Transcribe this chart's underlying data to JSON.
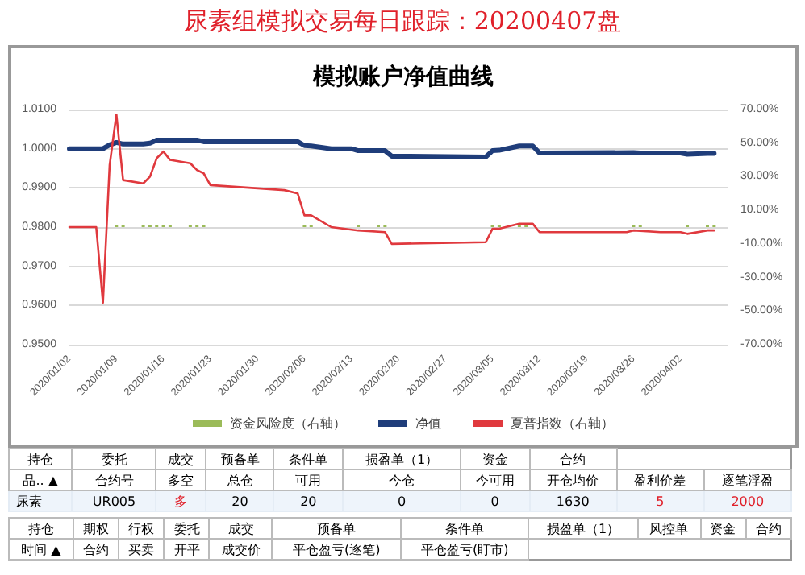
{
  "chart_data": [
    {
      "type": "line",
      "title": "尿素组模拟交易每日跟踪：20200407盘",
      "subtitle": "模拟账户净值曲线",
      "xlim": [
        "2020-01-02",
        "2020-04-09"
      ],
      "xticks": [
        {
          "value": "2020-01-02",
          "label": "2020/01/02"
        },
        {
          "value": "2020-01-09",
          "label": "2020/01/09"
        },
        {
          "value": "2020-01-16",
          "label": "2020/01/16"
        },
        {
          "value": "2020-01-23",
          "label": "2020/01/23"
        },
        {
          "value": "2020-01-30",
          "label": "2020/01/30"
        },
        {
          "value": "2020-02-06",
          "label": "2020/02/06"
        },
        {
          "value": "2020-02-13",
          "label": "2020/02/13"
        },
        {
          "value": "2020-02-20",
          "label": "2020/02/20"
        },
        {
          "value": "2020-02-27",
          "label": "2020/02/27"
        },
        {
          "value": "2020-03-05",
          "label": "2020/03/05"
        },
        {
          "value": "2020-03-12",
          "label": "2020/03/12"
        },
        {
          "value": "2020-03-19",
          "label": "2020/03/19"
        },
        {
          "value": "2020-03-26",
          "label": "2020/03/26"
        },
        {
          "value": "2020-04-02",
          "label": "2020/04/02"
        }
      ],
      "ylim": [
        0.95,
        1.01
      ],
      "yticks": [
        {
          "value": 0.95,
          "label": "0.9500"
        },
        {
          "value": 0.96,
          "label": "0.9600"
        },
        {
          "value": 0.97,
          "label": "0.9700"
        },
        {
          "value": 0.98,
          "label": "0.9800"
        },
        {
          "value": 0.99,
          "label": "0.9900"
        },
        {
          "value": 1.0,
          "label": "1.0000"
        },
        {
          "value": 1.01,
          "label": "1.0100"
        }
      ],
      "y2lim": [
        -70,
        70
      ],
      "y2ticks": [
        {
          "value": -70,
          "label": "-70.00%"
        },
        {
          "value": -50,
          "label": "-50.00%"
        },
        {
          "value": -30,
          "label": "-30.00%"
        },
        {
          "value": -10,
          "label": "-10.00%"
        },
        {
          "value": 10,
          "label": "10.00%"
        },
        {
          "value": 30,
          "label": "30.00%"
        },
        {
          "value": 50,
          "label": "50.00%"
        },
        {
          "value": 70,
          "label": "70.00%"
        }
      ],
      "grid": "y",
      "legend": "bottom",
      "marker": "none",
      "series": [
        {
          "name": "资金风险度（右轴）",
          "type": "bar",
          "axis": "y2",
          "color": "#9bbb59",
          "x": [
            "2020-01-09",
            "2020-01-10",
            "2020-01-13",
            "2020-01-14",
            "2020-01-15",
            "2020-01-16",
            "2020-01-17",
            "2020-01-20",
            "2020-01-21",
            "2020-01-22",
            "2020-02-06",
            "2020-02-07",
            "2020-02-14",
            "2020-02-17",
            "2020-02-18",
            "2020-03-05",
            "2020-03-06",
            "2020-03-09",
            "2020-03-10",
            "2020-03-26",
            "2020-03-27",
            "2020-04-03",
            "2020-04-06",
            "2020-04-07"
          ],
          "values": [
            1,
            1,
            1,
            1,
            1,
            1,
            1,
            1,
            1,
            1,
            1,
            1,
            1,
            1,
            1,
            1,
            1,
            1,
            1,
            1,
            1,
            1,
            1,
            1
          ]
        },
        {
          "name": "净值",
          "color": "#1f3d7a",
          "line_style": "solid",
          "x": [
            "2020-01-02",
            "2020-01-06",
            "2020-01-07",
            "2020-01-08",
            "2020-01-09",
            "2020-01-10",
            "2020-01-13",
            "2020-01-14",
            "2020-01-15",
            "2020-01-21",
            "2020-01-22",
            "2020-02-05",
            "2020-02-06",
            "2020-02-07",
            "2020-02-10",
            "2020-02-13",
            "2020-02-14",
            "2020-02-18",
            "2020-02-19",
            "2020-03-04",
            "2020-03-05",
            "2020-03-06",
            "2020-03-09",
            "2020-03-11",
            "2020-03-12",
            "2020-03-26",
            "2020-03-27",
            "2020-04-02",
            "2020-04-03",
            "2020-04-06",
            "2020-04-07"
          ],
          "values": [
            1.0,
            1.0,
            1.0,
            1.001,
            1.0016,
            1.0012,
            1.0012,
            1.0014,
            1.0022,
            1.0022,
            1.0018,
            1.0018,
            1.0008,
            1.0007,
            1.0,
            1.0,
            0.9995,
            0.9995,
            0.9981,
            0.9979,
            0.9995,
            0.9996,
            1.0007,
            1.0007,
            0.9989,
            0.999,
            0.9989,
            0.9989,
            0.9986,
            0.9988,
            0.9988
          ]
        },
        {
          "name": "夏普指数（右轴）",
          "color": "#e0393e",
          "axis": "y2",
          "line_style": "solid",
          "x": [
            "2020-01-02",
            "2020-01-06",
            "2020-01-07",
            "2020-01-08",
            "2020-01-09",
            "2020-01-10",
            "2020-01-13",
            "2020-01-14",
            "2020-01-15",
            "2020-01-16",
            "2020-01-17",
            "2020-01-20",
            "2020-01-21",
            "2020-01-22",
            "2020-01-23",
            "2020-02-03",
            "2020-02-05",
            "2020-02-06",
            "2020-02-07",
            "2020-02-10",
            "2020-02-14",
            "2020-02-18",
            "2020-02-19",
            "2020-03-04",
            "2020-03-05",
            "2020-03-06",
            "2020-03-09",
            "2020-03-11",
            "2020-03-12",
            "2020-03-25",
            "2020-03-26",
            "2020-03-30",
            "2020-04-02",
            "2020-04-03",
            "2020-04-06",
            "2020-04-07"
          ],
          "values": [
            0,
            0,
            -45,
            37,
            67,
            28,
            26,
            30,
            41,
            45,
            40,
            38,
            34,
            32,
            25,
            22,
            20,
            7,
            7,
            0,
            -2,
            -3,
            -10,
            -9,
            -1,
            -1,
            2,
            2,
            -3,
            -3,
            -2,
            -3,
            -3,
            -4,
            -2,
            -2
          ]
        }
      ]
    },
    {
      "type": "other",
      "annotations": [
        "持仓",
        "委托",
        "成交",
        "预备单",
        "条件单",
        "损盈单（1）",
        "资金",
        "合约",
        "品.. ▲",
        "合约号",
        "多空",
        "总仓",
        "可用",
        "今仓",
        "今可用",
        "开仓均价",
        "盈利价差",
        "逐笔浮盈",
        "尿素",
        "UR005",
        "多",
        "20",
        "20",
        "0",
        "0",
        "1630",
        "5",
        "2000"
      ]
    },
    {
      "type": "other",
      "annotations": [
        "持仓",
        "期权",
        "行权",
        "委托",
        "成交",
        "预备单",
        "条件单",
        "损盈单（1）",
        "风控单",
        "资金",
        "合约",
        "时间 ▲",
        "合约",
        "买卖",
        "开平",
        "成交价",
        "平仓盈亏(逐笔)",
        "平仓盈亏(盯市)"
      ]
    }
  ]
}
